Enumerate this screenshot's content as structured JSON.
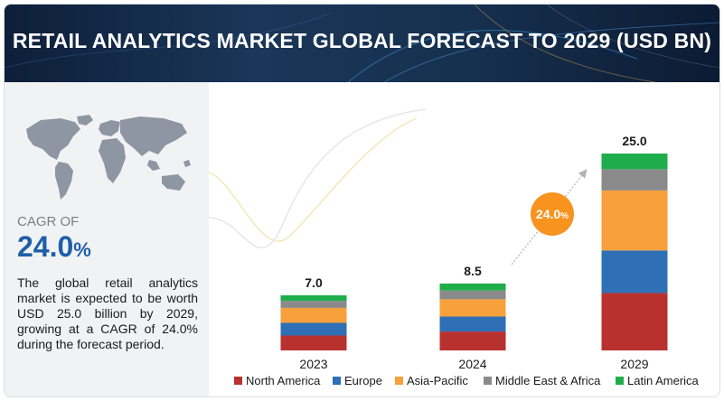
{
  "title": "RETAIL ANALYTICS MARKET GLOBAL FORECAST TO 2029 (USD BN)",
  "cagr": {
    "label": "CAGR OF",
    "value_main": "24.0",
    "value_unit": "%"
  },
  "description": "The global retail analytics market is expected to be worth USD 25.0 billion by 2029, growing at a CAGR of 24.0% during the forecast period.",
  "growth_badge": {
    "main": "24.0",
    "unit": "%",
    "color": "#f7931e"
  },
  "chart_data": {
    "type": "bar",
    "stacked": true,
    "categories": [
      "2023",
      "2024",
      "2029"
    ],
    "totals": [
      7.0,
      8.5,
      25.0
    ],
    "total_labels": [
      "7.0",
      "8.5",
      "25.0"
    ],
    "series": [
      {
        "name": "North America",
        "color": "#b8312f",
        "values": [
          1.9,
          2.4,
          7.3
        ]
      },
      {
        "name": "Europe",
        "color": "#2f6fb5",
        "values": [
          1.6,
          1.9,
          5.4
        ]
      },
      {
        "name": "Asia-Pacific",
        "color": "#f7a03c",
        "values": [
          1.9,
          2.2,
          7.6
        ]
      },
      {
        "name": "Middle East & Africa",
        "color": "#8a8a8a",
        "values": [
          0.9,
          1.1,
          2.7
        ]
      },
      {
        "name": "Latin America",
        "color": "#1fad4b",
        "values": [
          0.7,
          0.9,
          2.0
        ]
      }
    ],
    "legend_position": "bottom",
    "grid": false
  }
}
